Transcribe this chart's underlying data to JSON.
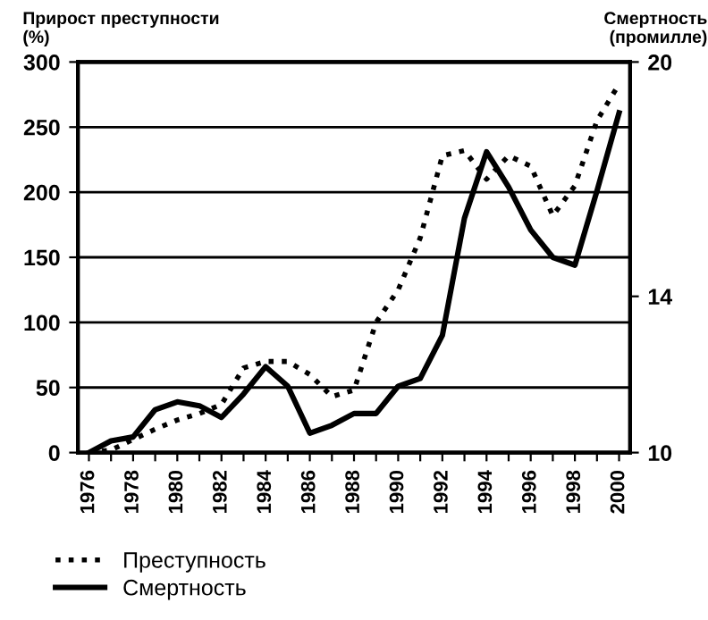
{
  "chart_data": {
    "type": "line",
    "ylabel": "Прирост преступности\n(%)",
    "y2label": "Смертность\n(промилле)",
    "x": [
      1976,
      1977,
      1978,
      1979,
      1980,
      1981,
      1982,
      1983,
      1984,
      1985,
      1986,
      1987,
      1988,
      1989,
      1990,
      1991,
      1992,
      1993,
      1994,
      1995,
      1996,
      1997,
      1998,
      1999,
      2000
    ],
    "series": [
      {
        "name": "Преступность",
        "color": "#000000",
        "line_style": "dotted",
        "values": [
          0,
          2,
          10,
          18,
          25,
          30,
          37,
          65,
          70,
          70,
          60,
          43,
          48,
          100,
          125,
          165,
          228,
          232,
          210,
          228,
          220,
          182,
          205,
          255,
          283
        ]
      },
      {
        "name": "Смертность",
        "color": "#000000",
        "line_style": "solid",
        "axis": "y2",
        "values": [
          10,
          10.3,
          10.4,
          11.1,
          11.3,
          11.2,
          10.9,
          11.5,
          12.2,
          11.7,
          10.5,
          10.7,
          11.0,
          11.0,
          11.7,
          11.9,
          13.0,
          16.0,
          17.7,
          16.8,
          15.7,
          15.0,
          14.8,
          16.7,
          18.7
        ]
      }
    ],
    "xlim": [
      1975.5,
      2000.5
    ],
    "xticks": [
      1976,
      {
        "value": 1977,
        "label": null
      },
      1978,
      {
        "value": 1979,
        "label": null
      },
      1980,
      {
        "value": 1981,
        "label": null
      },
      1982,
      {
        "value": 1983,
        "label": null
      },
      1984,
      {
        "value": 1985,
        "label": null
      },
      1986,
      {
        "value": 1987,
        "label": null
      },
      1988,
      {
        "value": 1989,
        "label": null
      },
      1990,
      {
        "value": 1991,
        "label": null
      },
      1992,
      {
        "value": 1993,
        "label": null
      },
      1994,
      {
        "value": 1995,
        "label": null
      },
      1996,
      {
        "value": 1997,
        "label": null
      },
      1998,
      {
        "value": 1999,
        "label": null
      },
      2000
    ],
    "ylim": [
      0,
      300
    ],
    "yticks": [
      0,
      50,
      100,
      150,
      200,
      250,
      300
    ],
    "y2lim": [
      10,
      20
    ],
    "y2ticks": [
      10,
      14,
      20
    ],
    "grid": "y",
    "legend": "bottom"
  }
}
